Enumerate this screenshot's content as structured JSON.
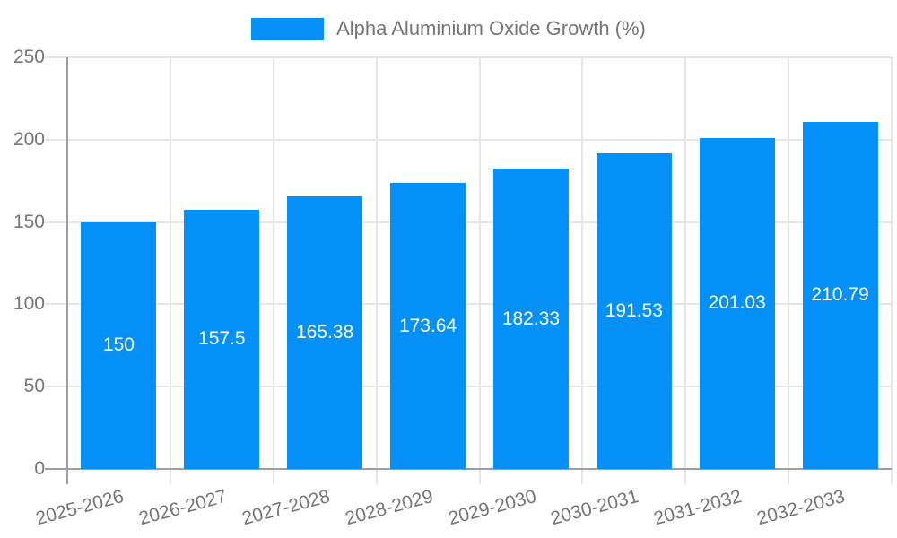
{
  "chart_data": {
    "type": "bar",
    "series_name": "Alpha Aluminium Oxide Growth (%)",
    "categories": [
      "2025-2026",
      "2026-2027",
      "2027-2028",
      "2028-2029",
      "2029-2030",
      "2030-2031",
      "2031-2032",
      "2032-2033"
    ],
    "values": [
      150,
      157.5,
      165.38,
      173.64,
      182.33,
      191.53,
      201.03,
      210.79
    ],
    "value_labels": [
      "150",
      "157.5",
      "165.38",
      "173.64",
      "182.33",
      "191.53",
      "201.03",
      "210.79"
    ],
    "title": "",
    "xlabel": "",
    "ylabel": "",
    "ylim": [
      0,
      250
    ],
    "yticks": [
      0,
      50,
      100,
      150,
      200,
      250
    ],
    "ytick_labels": [
      "0",
      "50",
      "100",
      "150",
      "200",
      "250"
    ],
    "grid": true,
    "legend_position": "top-center",
    "value_labels_position": "inside-center",
    "colors": {
      "bar": "#0590F8",
      "axis": "#9e9e9e",
      "gridline": "#e6e6e6",
      "tick_text": "#757575",
      "legend_text": "#757575",
      "value_label_text": "#ffffff",
      "background": "#ffffff"
    }
  }
}
